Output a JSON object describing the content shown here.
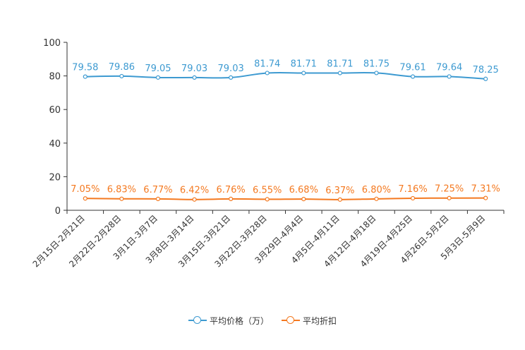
{
  "chart_data": {
    "type": "line",
    "title": "",
    "xlabel": "",
    "ylabel": "",
    "ylim": [
      0,
      100
    ],
    "y_ticks": [
      "0",
      "20",
      "40",
      "60",
      "80",
      "100"
    ],
    "categories": [
      "2月15日-2月21日",
      "2月22日-2月28日",
      "3月1日-3月7日",
      "3月8日-3月14日",
      "3月15日-3月21日",
      "3月22日-3月28日",
      "3月29日-4月4日",
      "4月5日-4月11日",
      "4月12日-4月18日",
      "4月19日-4月25日",
      "4月26日-5月2日",
      "5月3日-5月9日"
    ],
    "series": [
      {
        "name": "平均价格（万）",
        "color": "#3d9ad1",
        "values": [
          79.58,
          79.86,
          79.05,
          79.03,
          79.03,
          81.74,
          81.71,
          81.71,
          81.75,
          79.61,
          79.64,
          78.25
        ],
        "labels": [
          "79.58",
          "79.86",
          "79.05",
          "79.03",
          "79.03",
          "81.74",
          "81.71",
          "81.71",
          "81.75",
          "79.61",
          "79.64",
          "78.25"
        ]
      },
      {
        "name": "平均折扣",
        "color": "#f47920",
        "values": [
          7.05,
          6.83,
          6.77,
          6.42,
          6.76,
          6.55,
          6.68,
          6.37,
          6.8,
          7.16,
          7.25,
          7.31
        ],
        "labels": [
          "7.05%",
          "6.83%",
          "6.77%",
          "6.42%",
          "6.76%",
          "6.55%",
          "6.68%",
          "6.37%",
          "6.80%",
          "7.16%",
          "7.25%",
          "7.31%"
        ]
      }
    ],
    "legend_position": "bottom"
  }
}
